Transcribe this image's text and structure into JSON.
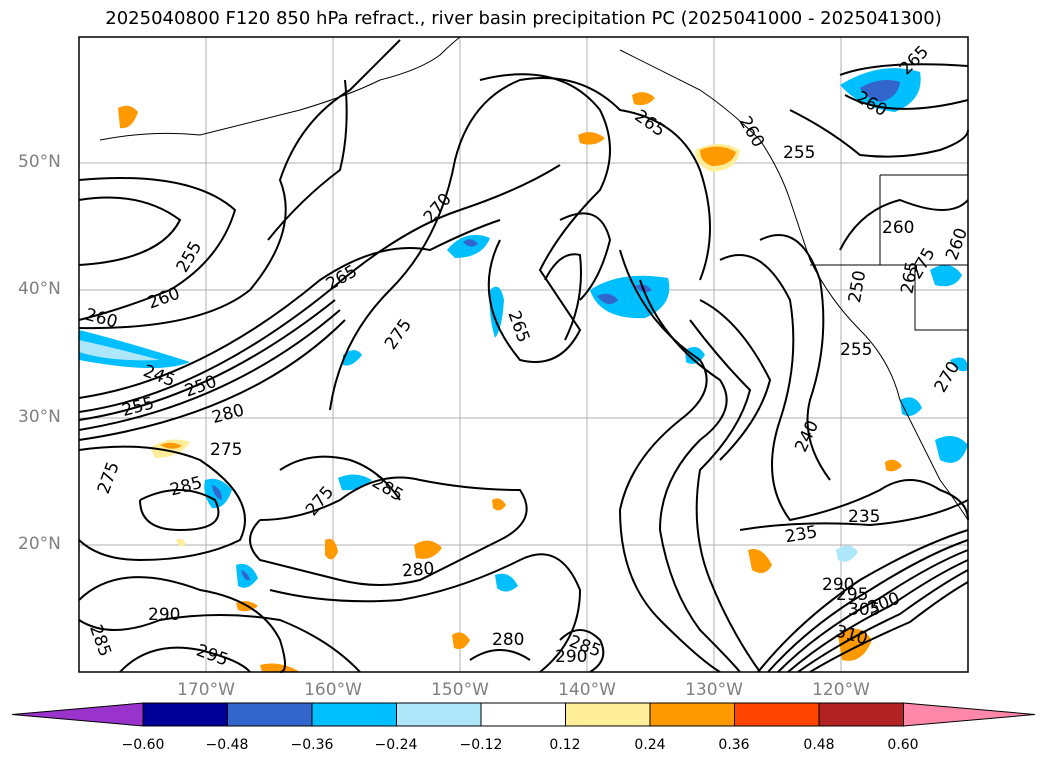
{
  "title": "2025040800 F120 850 hPa refract., river basin precipitation PC (2025041000 - 2025041300)",
  "axes": {
    "lat_labels": [
      "50°N",
      "40°N",
      "30°N",
      "20°N"
    ],
    "lon_labels": [
      "170°W",
      "160°W",
      "150°W",
      "140°W",
      "130°W",
      "120°W"
    ]
  },
  "contour_labels": [
    "265",
    "260",
    "265",
    "260",
    "255",
    "270",
    "255",
    "260",
    "260",
    "265",
    "275",
    "265",
    "265",
    "245",
    "250",
    "255",
    "280",
    "275",
    "275",
    "285",
    "275",
    "285",
    "280",
    "290",
    "295",
    "285",
    "280",
    "285",
    "290",
    "240",
    "235",
    "235",
    "260",
    "260",
    "275",
    "250",
    "255",
    "270",
    "305",
    "310",
    "300",
    "290",
    "295"
  ],
  "colorbar": {
    "ticks": [
      "−0.60",
      "−0.48",
      "−0.36",
      "−0.24",
      "−0.12",
      "0.12",
      "0.24",
      "0.36",
      "0.48",
      "0.60"
    ],
    "colors": [
      "#9933cc",
      "#000099",
      "#3366cc",
      "#00bfff",
      "#aee6fa",
      "#ffffff",
      "#ffee99",
      "#ff9900",
      "#ff4400",
      "#b22222",
      "#ff88aa"
    ]
  }
}
